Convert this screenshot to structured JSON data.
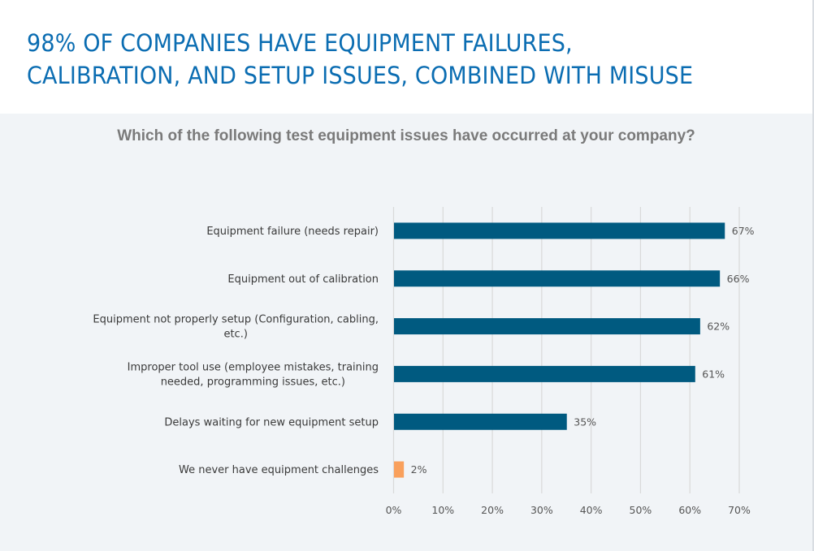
{
  "slide": {
    "title_line1": "98% OF COMPANIES HAVE EQUIPMENT FAILURES,",
    "title_line2": "CALIBRATION, AND SETUP ISSUES, COMBINED WITH MISUSE"
  },
  "colors": {
    "title": "#0b6db2",
    "bar_primary": "#005a80",
    "bar_highlight": "#f9a05c",
    "gridline": "#d9d9d9",
    "panel_bg": "#f1f4f7"
  },
  "chart_data": {
    "type": "bar",
    "orientation": "horizontal",
    "title": "Which of the following test equipment issues have occurred at your company?",
    "xlabel": "",
    "ylabel": "",
    "xlim": [
      0,
      70
    ],
    "grid": true,
    "legend": "none",
    "categories": [
      [
        "Equipment failure (needs repair)"
      ],
      [
        "Equipment out of calibration"
      ],
      [
        "Equipment not properly setup (Configuration, cabling,",
        "etc.)"
      ],
      [
        "Improper tool use (employee mistakes, training",
        "needed, programming issues, etc.)"
      ],
      [
        "Delays waiting for new equipment setup"
      ],
      [
        "We never have equipment challenges"
      ]
    ],
    "values": [
      67,
      66,
      62,
      61,
      35,
      2
    ],
    "value_labels": [
      "67%",
      "66%",
      "62%",
      "61%",
      "35%",
      "2%"
    ],
    "highlight": [
      false,
      false,
      false,
      false,
      false,
      true
    ],
    "ticks": [
      0,
      10,
      20,
      30,
      40,
      50,
      60,
      70
    ],
    "tick_labels": [
      "0%",
      "10%",
      "20%",
      "30%",
      "40%",
      "50%",
      "60%",
      "70%"
    ]
  }
}
